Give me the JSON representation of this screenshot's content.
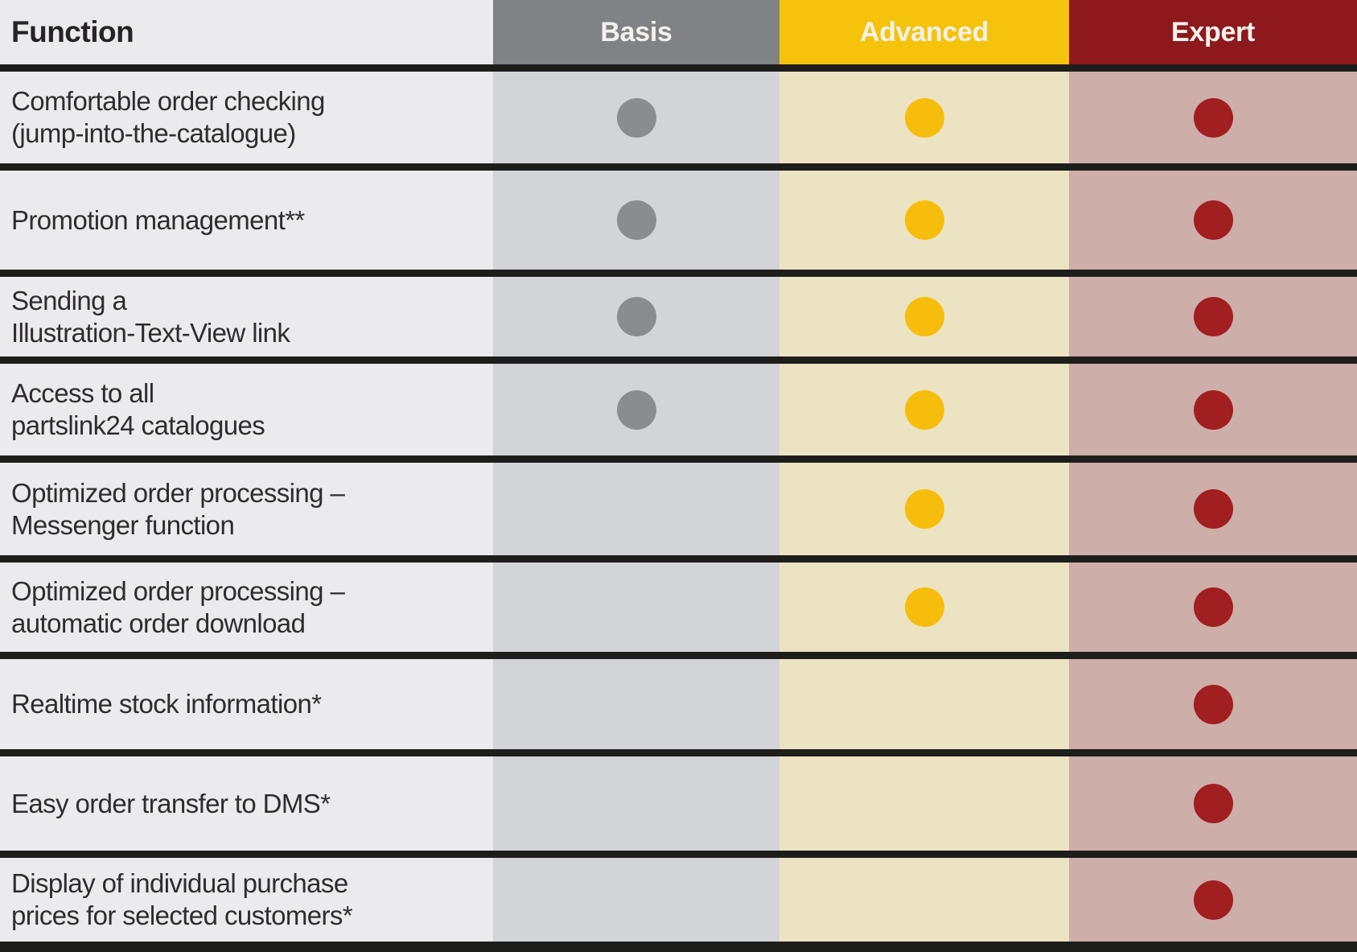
{
  "table": {
    "header": {
      "function": "Function",
      "basis": "Basis",
      "advanced": "Advanced",
      "expert": "Expert"
    },
    "rows": [
      {
        "function": "Comfortable order checking\n(jump-into-the-catalogue)",
        "basis": true,
        "advanced": true,
        "expert": true
      },
      {
        "function": "Promotion management**",
        "basis": true,
        "advanced": true,
        "expert": true
      },
      {
        "function": "Sending a\nIllustration-Text-View link",
        "basis": true,
        "advanced": true,
        "expert": true
      },
      {
        "function": "Access to all\npartslink24 catalogues",
        "basis": true,
        "advanced": true,
        "expert": true
      },
      {
        "function": "Optimized order processing –\nMessenger function",
        "basis": false,
        "advanced": true,
        "expert": true
      },
      {
        "function": "Optimized order processing –\nautomatic order download",
        "basis": false,
        "advanced": true,
        "expert": true
      },
      {
        "function": "Realtime stock information*",
        "basis": false,
        "advanced": false,
        "expert": true
      },
      {
        "function": "Easy order transfer to DMS*",
        "basis": false,
        "advanced": false,
        "expert": true
      },
      {
        "function": "Display of individual purchase\nprices for selected customers*",
        "basis": false,
        "advanced": false,
        "expert": true
      }
    ]
  },
  "chart_data": {
    "type": "table",
    "title": "",
    "columns": [
      "Function",
      "Basis",
      "Advanced",
      "Expert"
    ],
    "rows": [
      [
        "Comfortable order checking (jump-into-the-catalogue)",
        true,
        true,
        true
      ],
      [
        "Promotion management**",
        true,
        true,
        true
      ],
      [
        "Sending a Illustration-Text-View link",
        true,
        true,
        true
      ],
      [
        "Access to all partslink24 catalogues",
        true,
        true,
        true
      ],
      [
        "Optimized order processing – Messenger function",
        false,
        true,
        true
      ],
      [
        "Optimized order processing – automatic order download",
        false,
        true,
        true
      ],
      [
        "Realtime stock information*",
        false,
        false,
        true
      ],
      [
        "Easy order transfer to DMS*",
        false,
        false,
        true
      ],
      [
        "Display of individual purchase prices for selected customers*",
        false,
        false,
        true
      ]
    ],
    "cell_marker": "filled-dot"
  },
  "colors": {
    "function_column": "#ebebed",
    "basis_header": "#808285",
    "advanced_header": "#f5c30b",
    "expert_header": "#8e191c",
    "basis_column": "#d3d4d8",
    "advanced_column": "#ece3c3",
    "expert_column": "#cdaea8",
    "basis_dot": "#8a8c90",
    "advanced_dot": "#f7bd0c",
    "expert_dot": "#a11e21",
    "grid_line": "#1d1d1b",
    "header_text": "#f4f1ec",
    "body_text": "#2e2c2f"
  }
}
